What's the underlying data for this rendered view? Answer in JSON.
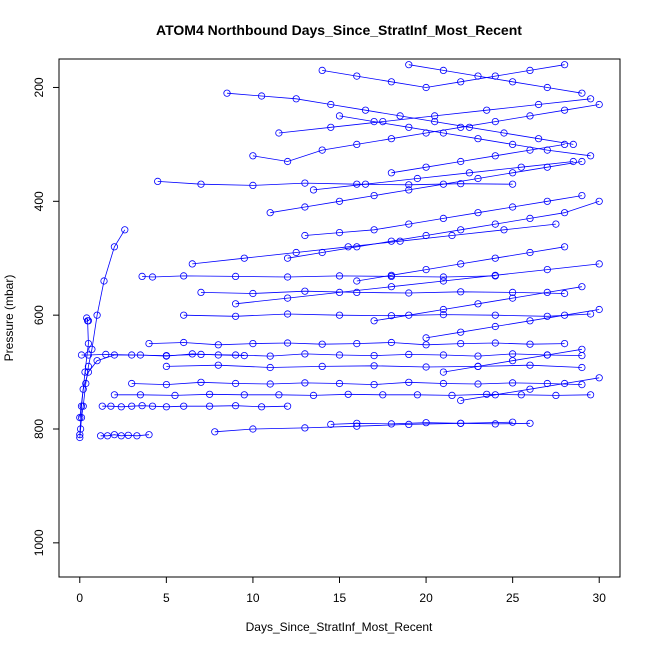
{
  "chart_data": {
    "type": "scatter",
    "title": "ATOM4 Northbound Days_Since_StratInf_Most_Recent",
    "xlabel": "Days_Since_StratInf_Most_Recent",
    "ylabel": "Pressure (mbar)",
    "xlim": [
      -1.2,
      31.2
    ],
    "ylim": [
      1060,
      150
    ],
    "y_reversed": true,
    "x_ticks": [
      0,
      5,
      10,
      15,
      20,
      25,
      30
    ],
    "y_ticks": [
      200,
      400,
      600,
      800,
      1000
    ],
    "grid": false,
    "legend": "none",
    "series_color": "#0000ff",
    "marker": "open-circle",
    "series": [
      {
        "x": [
          0.0,
          0.05,
          0.1,
          0.2,
          0.35,
          0.5,
          0.7,
          1.0,
          1.4,
          2.0,
          2.6
        ],
        "y": [
          815,
          800,
          780,
          760,
          720,
          690,
          660,
          600,
          540,
          480,
          450
        ]
      },
      {
        "x": [
          0.0,
          0.1,
          0.3,
          0.5,
          0.45,
          0.4,
          0.5
        ],
        "y": [
          810,
          760,
          700,
          650,
          610,
          605,
          610
        ]
      },
      {
        "x": [
          0.0,
          0.2,
          0.5,
          1.0,
          2.0,
          3.5,
          5.0,
          6.5,
          8.0,
          9.5
        ],
        "y": [
          780,
          730,
          700,
          680,
          670,
          670,
          672,
          668,
          670,
          671
        ]
      },
      {
        "x": [
          0.1,
          0.5,
          1.5,
          3.0,
          5.0,
          7.0,
          9.0,
          11.0,
          13.0,
          15.0,
          17.0,
          19.0,
          21.0,
          23.0,
          25.0,
          27.0,
          29.0
        ],
        "y": [
          670,
          670,
          669,
          670,
          671,
          669,
          670,
          672,
          668,
          670,
          671,
          669,
          670,
          672,
          668,
          670,
          671
        ]
      },
      {
        "x": [
          1.2,
          1.6,
          2.0,
          2.4,
          2.8,
          3.3,
          4.0
        ],
        "y": [
          812,
          812,
          810,
          812,
          811,
          812,
          810
        ]
      },
      {
        "x": [
          1.3,
          1.8,
          2.4,
          3.0,
          3.6,
          4.2,
          5.0,
          6.0,
          7.5,
          9.0,
          10.5,
          12.0
        ],
        "y": [
          760,
          760,
          761,
          760,
          759,
          760,
          761,
          760,
          760,
          759,
          761,
          760
        ]
      },
      {
        "x": [
          2.0,
          3.5,
          5.5,
          7.5,
          9.5,
          11.5,
          13.5,
          15.5,
          17.5,
          19.5,
          21.5,
          23.5,
          25.5,
          27.5,
          29.5
        ],
        "y": [
          740,
          740,
          741,
          739,
          740,
          740,
          741,
          739,
          740,
          740,
          741,
          739,
          740,
          741,
          740
        ]
      },
      {
        "x": [
          3.0,
          5.0,
          7.0,
          9.0,
          11.0,
          13.0,
          15.0,
          17.0,
          19.0,
          21.0,
          23.0,
          25.0,
          27.0,
          29.0
        ],
        "y": [
          720,
          722,
          718,
          720,
          721,
          719,
          720,
          722,
          718,
          720,
          721,
          719,
          720,
          722
        ]
      },
      {
        "x": [
          4.0,
          6.0,
          8.0,
          10.0,
          12.0,
          14.0,
          16.0,
          18.0,
          20.0,
          22.0,
          24.0,
          26.0,
          28.0
        ],
        "y": [
          650,
          648,
          652,
          650,
          649,
          651,
          650,
          648,
          652,
          650,
          649,
          651,
          650
        ]
      },
      {
        "x": [
          3.6,
          4.2,
          6.0,
          9.0,
          12.0,
          15.0,
          18.0,
          21.0,
          24.0
        ],
        "y": [
          532,
          533,
          531,
          532,
          533,
          531,
          532,
          533,
          531
        ]
      },
      {
        "x": [
          5.0,
          8.0,
          11.0,
          14.0,
          17.0,
          20.0,
          23.0,
          26.0,
          29.0
        ],
        "y": [
          690,
          688,
          692,
          690,
          689,
          691,
          690,
          688,
          692
        ]
      },
      {
        "x": [
          6.0,
          9.0,
          12.0,
          15.0,
          18.0,
          21.0,
          24.0,
          27.0,
          29.5
        ],
        "y": [
          600,
          602,
          598,
          600,
          601,
          599,
          600,
          602,
          598
        ]
      },
      {
        "x": [
          7.0,
          10.0,
          13.0,
          16.0,
          19.0,
          22.0,
          25.0,
          28.0
        ],
        "y": [
          560,
          562,
          558,
          560,
          561,
          559,
          560,
          562
        ]
      },
      {
        "x": [
          4.5,
          7.0,
          10.0,
          13.0,
          16.0,
          19.0,
          22.0,
          25.0
        ],
        "y": [
          365,
          370,
          372,
          368,
          370,
          371,
          369,
          370
        ]
      },
      {
        "x": [
          7.8,
          10.0,
          13.0,
          16.0,
          19.0,
          22.0,
          25.0
        ],
        "y": [
          805,
          800,
          798,
          795,
          792,
          790,
          788
        ]
      },
      {
        "x": [
          14.5,
          16.0,
          18.0,
          20.0,
          22.0,
          24.0,
          26.0
        ],
        "y": [
          792,
          790,
          791,
          789,
          790,
          791,
          790
        ]
      },
      {
        "x": [
          8.5,
          10.5,
          12.5,
          14.5,
          16.5,
          18.5,
          20.5,
          22.5,
          24.5,
          26.5,
          28.5
        ],
        "y": [
          210,
          215,
          220,
          230,
          240,
          250,
          260,
          270,
          280,
          290,
          300
        ]
      },
      {
        "x": [
          10.0,
          12.0,
          14.0,
          16.0,
          18.0,
          20.0,
          22.0,
          24.0,
          26.0,
          28.0,
          30.0
        ],
        "y": [
          320,
          330,
          310,
          300,
          290,
          280,
          270,
          260,
          250,
          240,
          230
        ]
      },
      {
        "x": [
          11.0,
          13.0,
          15.0,
          17.0,
          19.0,
          21.0,
          23.0,
          25.0,
          27.0,
          29.0
        ],
        "y": [
          420,
          410,
          400,
          390,
          380,
          370,
          360,
          350,
          340,
          330
        ]
      },
      {
        "x": [
          12.0,
          14.0,
          16.0,
          18.0,
          20.0,
          22.0,
          24.0,
          26.0,
          28.0,
          30.0
        ],
        "y": [
          500,
          490,
          480,
          470,
          460,
          450,
          440,
          430,
          420,
          400
        ]
      },
      {
        "x": [
          13.0,
          15.0,
          17.0,
          19.0,
          21.0,
          23.0,
          25.0,
          27.0,
          29.0
        ],
        "y": [
          460,
          455,
          450,
          440,
          430,
          420,
          410,
          400,
          390
        ]
      },
      {
        "x": [
          14.0,
          16.0,
          18.0,
          20.0,
          22.0,
          24.0,
          26.0,
          28.0
        ],
        "y": [
          170,
          180,
          190,
          200,
          190,
          180,
          170,
          160
        ]
      },
      {
        "x": [
          15.0,
          17.0,
          19.0,
          21.0,
          23.0,
          25.0,
          27.0,
          29.5
        ],
        "y": [
          250,
          260,
          270,
          280,
          290,
          300,
          310,
          320
        ]
      },
      {
        "x": [
          16.0,
          18.0,
          20.0,
          22.0,
          24.0,
          26.0,
          28.0
        ],
        "y": [
          540,
          530,
          520,
          510,
          500,
          490,
          480
        ]
      },
      {
        "x": [
          17.0,
          19.0,
          21.0,
          23.0,
          25.0,
          27.0,
          29.0
        ],
        "y": [
          610,
          600,
          590,
          580,
          570,
          560,
          550
        ]
      },
      {
        "x": [
          18.0,
          20.0,
          22.0,
          24.0,
          26.0,
          28.0
        ],
        "y": [
          350,
          340,
          330,
          320,
          310,
          300
        ]
      },
      {
        "x": [
          19.0,
          21.0,
          23.0,
          25.0,
          27.0,
          29.0
        ],
        "y": [
          160,
          170,
          180,
          190,
          200,
          210
        ]
      },
      {
        "x": [
          20.0,
          22.0,
          24.0,
          26.0,
          28.0,
          30.0
        ],
        "y": [
          640,
          630,
          620,
          610,
          600,
          590
        ]
      },
      {
        "x": [
          21.0,
          23.0,
          25.0,
          27.0,
          29.0
        ],
        "y": [
          700,
          690,
          680,
          670,
          660
        ]
      },
      {
        "x": [
          22.0,
          24.0,
          26.0,
          28.0,
          30.0
        ],
        "y": [
          750,
          740,
          730,
          720,
          710
        ]
      },
      {
        "x": [
          6.5,
          9.5,
          12.5,
          15.5,
          18.5,
          21.5,
          24.5,
          27.5
        ],
        "y": [
          510,
          500,
          490,
          480,
          470,
          460,
          450,
          440
        ]
      },
      {
        "x": [
          9.0,
          12.0,
          15.0,
          18.0,
          21.0,
          24.0,
          27.0,
          30.0
        ],
        "y": [
          580,
          570,
          560,
          550,
          540,
          530,
          520,
          510
        ]
      },
      {
        "x": [
          11.5,
          14.5,
          17.5,
          20.5,
          23.5,
          26.5,
          29.5
        ],
        "y": [
          280,
          270,
          260,
          250,
          240,
          230,
          220
        ]
      },
      {
        "x": [
          13.5,
          16.5,
          19.5,
          22.5,
          25.5,
          28.5
        ],
        "y": [
          380,
          370,
          360,
          350,
          340,
          330
        ]
      }
    ]
  }
}
